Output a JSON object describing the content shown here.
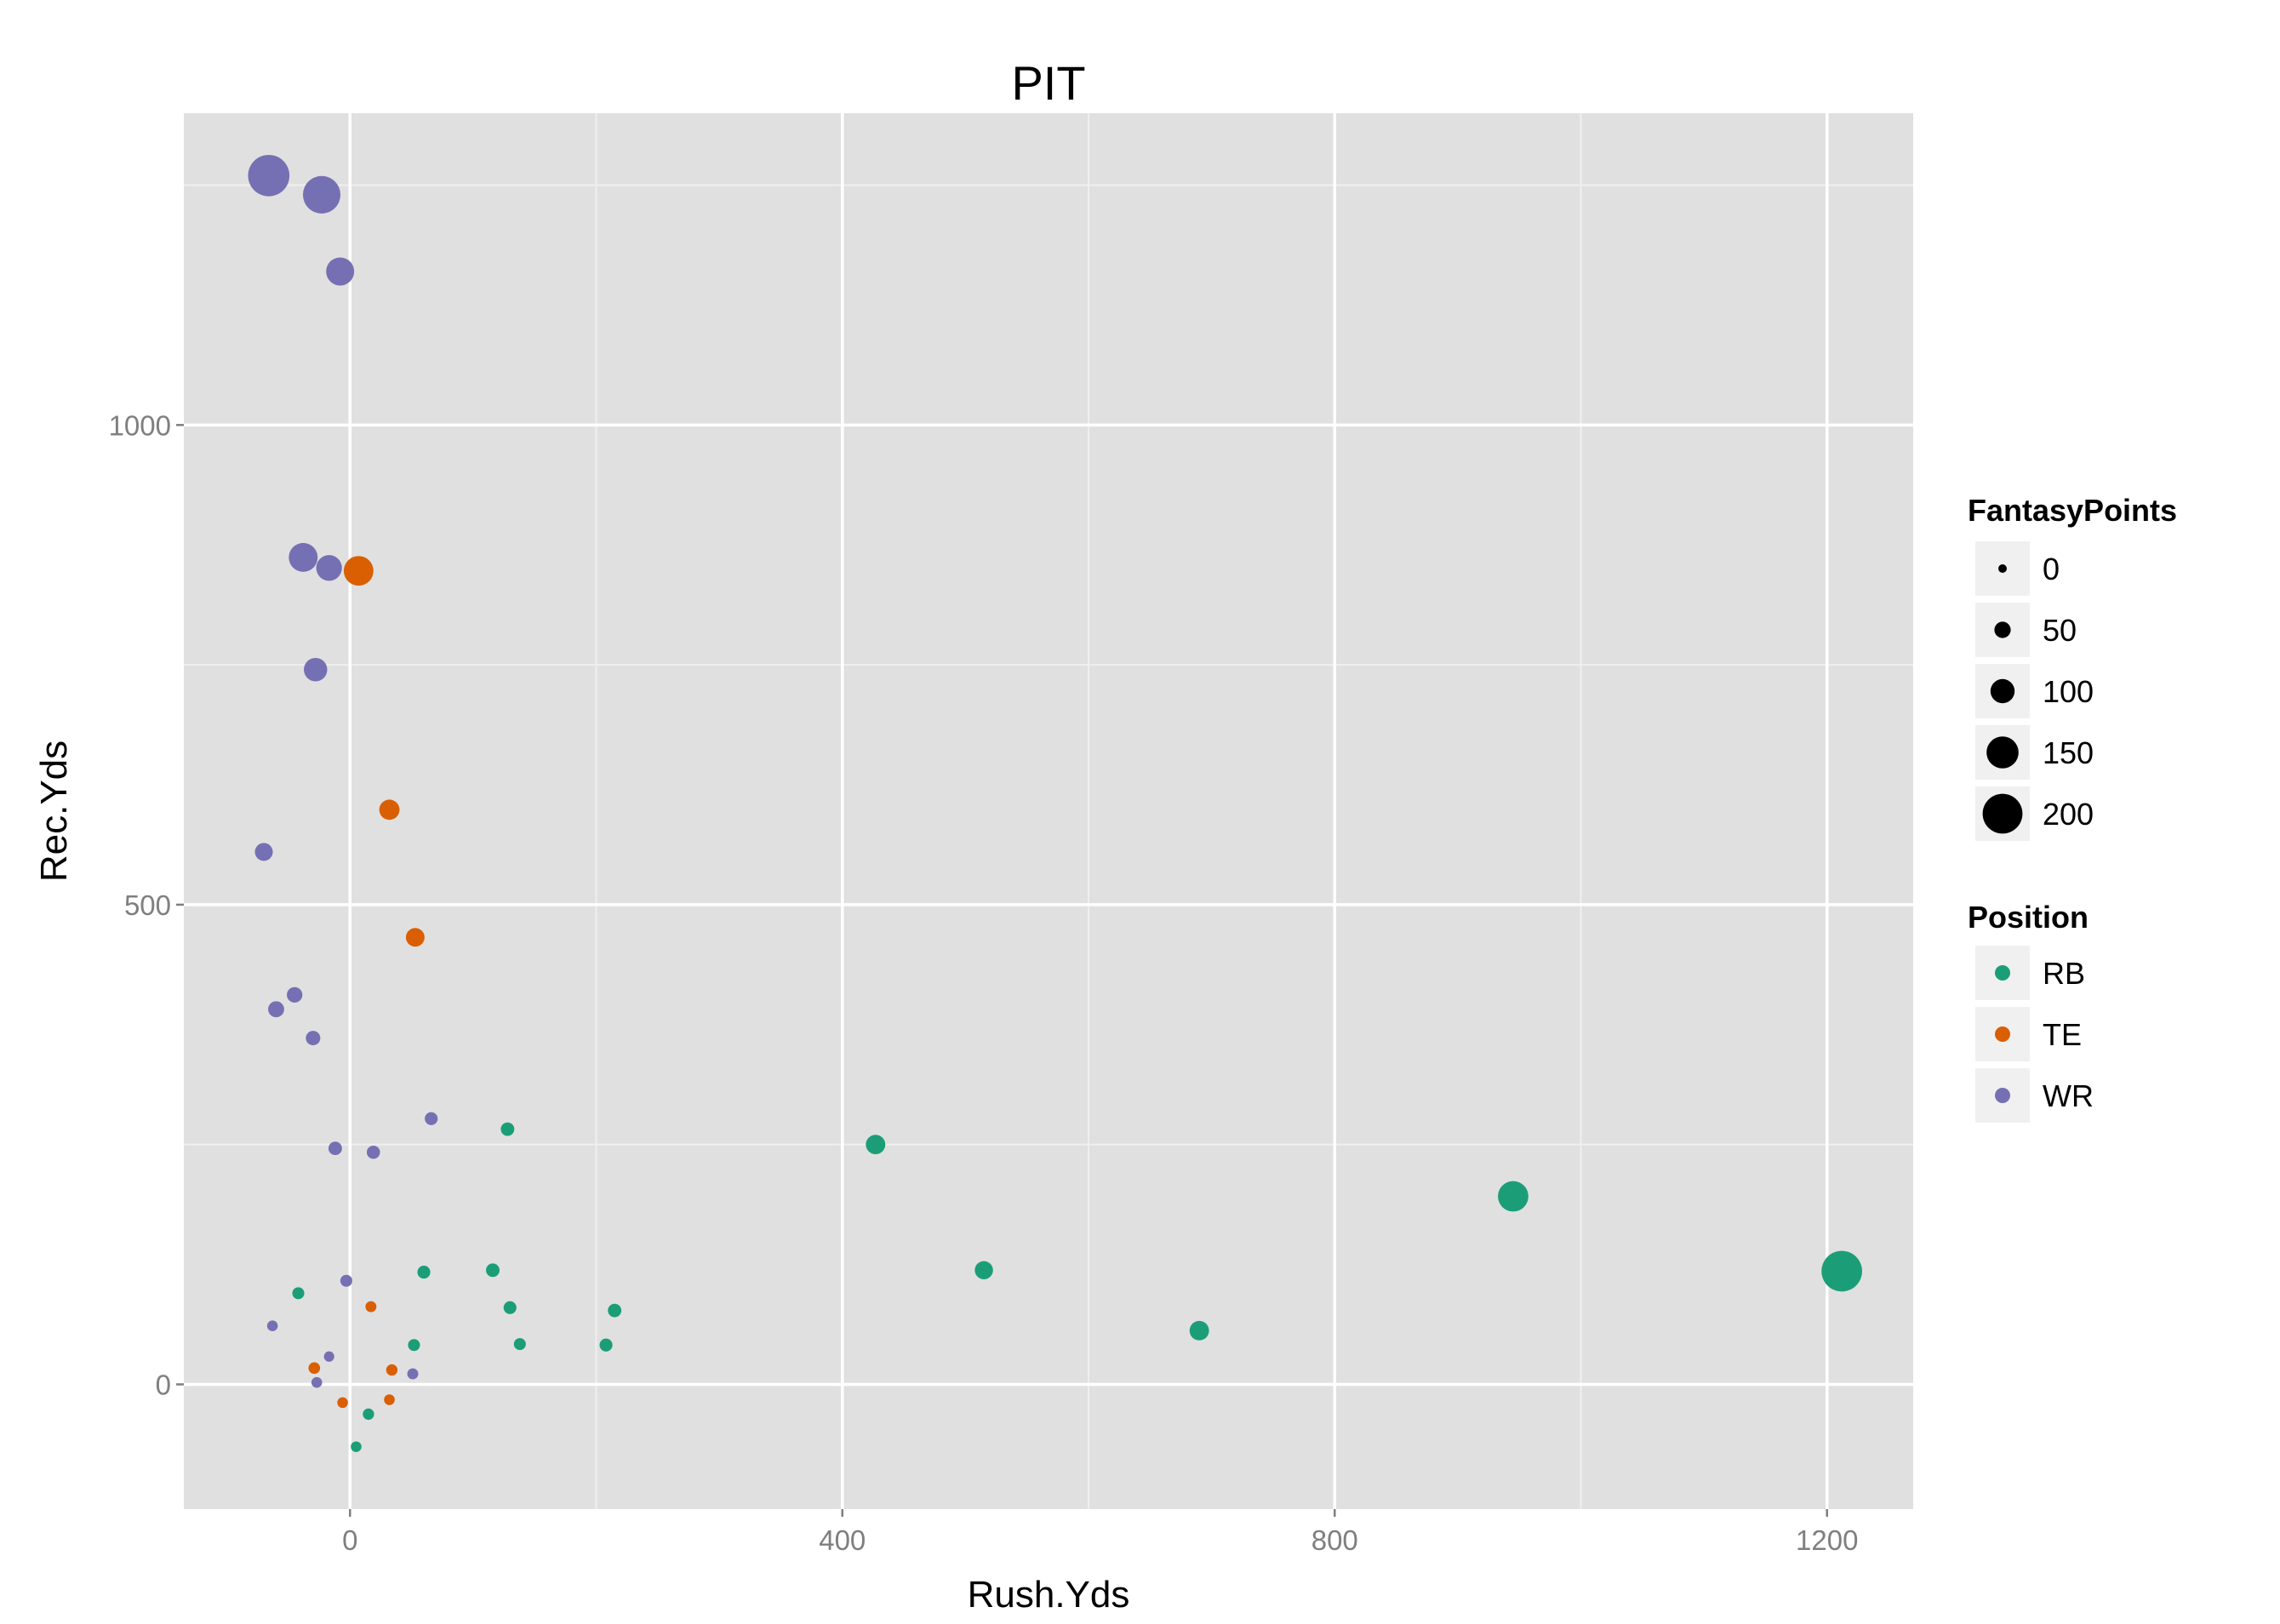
{
  "chart_data": {
    "type": "scatter",
    "title": "PIT",
    "xlabel": "Rush.Yds",
    "ylabel": "Rec.Yds",
    "xlim": [
      -135,
      1270
    ],
    "ylim": [
      -130,
      1325
    ],
    "x_ticks": [
      0,
      400,
      800,
      1200
    ],
    "y_ticks": [
      0,
      500,
      1000
    ],
    "x_tick_labels": [
      "0",
      "400",
      "800",
      "1200"
    ],
    "y_tick_labels": [
      "0",
      "500",
      "1000"
    ],
    "grid": true,
    "legend_position": "right",
    "colors": {
      "panel_background": "#e0e0e0",
      "grid_major": "#ffffff",
      "grid_minor": "#efefef",
      "RB": "#1b9e77",
      "TE": "#d95f02",
      "WR": "#7570b3"
    },
    "size_legend": {
      "title": "FantasyPoints",
      "values": [
        0,
        50,
        100,
        150,
        200
      ],
      "labels": [
        "0",
        "50",
        "100",
        "150",
        "200"
      ]
    },
    "color_legend": {
      "title": "Position",
      "entries": [
        "RB",
        "TE",
        "WR"
      ]
    },
    "series": [
      {
        "name": "RB",
        "points": [
          {
            "x": 1212,
            "y": 118,
            "size": 205
          },
          {
            "x": 945,
            "y": 196,
            "size": 140
          },
          {
            "x": 427,
            "y": 250,
            "size": 70
          },
          {
            "x": 515,
            "y": 119,
            "size": 62
          },
          {
            "x": 690,
            "y": 56,
            "size": 70
          },
          {
            "x": 128,
            "y": 266,
            "size": 32
          },
          {
            "x": 116,
            "y": 119,
            "size": 32
          },
          {
            "x": 60,
            "y": 117,
            "size": 28
          },
          {
            "x": 130,
            "y": 80,
            "size": 28
          },
          {
            "x": 215,
            "y": 77,
            "size": 32
          },
          {
            "x": 208,
            "y": 41,
            "size": 28
          },
          {
            "x": 138,
            "y": 42,
            "size": 22
          },
          {
            "x": 52,
            "y": 41,
            "size": 22
          },
          {
            "x": -42,
            "y": 95,
            "size": 22
          },
          {
            "x": 15,
            "y": -31,
            "size": 18
          },
          {
            "x": 5,
            "y": -65,
            "size": 14
          }
        ]
      },
      {
        "name": "TE",
        "points": [
          {
            "x": 7,
            "y": 848,
            "size": 135
          },
          {
            "x": 32,
            "y": 599,
            "size": 75
          },
          {
            "x": 53,
            "y": 466,
            "size": 65
          },
          {
            "x": 17,
            "y": 81,
            "size": 16
          },
          {
            "x": -29,
            "y": 17,
            "size": 20
          },
          {
            "x": 34,
            "y": 15,
            "size": 18
          },
          {
            "x": -6,
            "y": -19,
            "size": 14
          },
          {
            "x": 32,
            "y": -16,
            "size": 14
          }
        ]
      },
      {
        "name": "WR",
        "points": [
          {
            "x": -66,
            "y": 1260,
            "size": 210
          },
          {
            "x": -23,
            "y": 1240,
            "size": 185
          },
          {
            "x": -8,
            "y": 1160,
            "size": 125
          },
          {
            "x": -38,
            "y": 862,
            "size": 130
          },
          {
            "x": -17,
            "y": 851,
            "size": 110
          },
          {
            "x": -28,
            "y": 745,
            "size": 95
          },
          {
            "x": -70,
            "y": 555,
            "size": 60
          },
          {
            "x": -60,
            "y": 391,
            "size": 48
          },
          {
            "x": -45,
            "y": 406,
            "size": 45
          },
          {
            "x": -30,
            "y": 361,
            "size": 38
          },
          {
            "x": 66,
            "y": 277,
            "size": 28
          },
          {
            "x": -12,
            "y": 246,
            "size": 32
          },
          {
            "x": 19,
            "y": 242,
            "size": 30
          },
          {
            "x": -3,
            "y": 108,
            "size": 22
          },
          {
            "x": -63,
            "y": 61,
            "size": 14
          },
          {
            "x": -17,
            "y": 29,
            "size": 12
          },
          {
            "x": 51,
            "y": 11,
            "size": 16
          },
          {
            "x": -27,
            "y": 2,
            "size": 14
          }
        ]
      }
    ]
  }
}
